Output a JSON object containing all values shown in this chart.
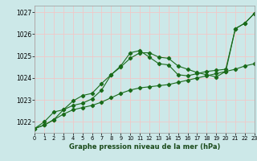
{
  "xlabel": "Graphe pression niveau de la mer (hPa)",
  "xlim": [
    0,
    23
  ],
  "ylim": [
    1021.5,
    1027.3
  ],
  "yticks": [
    1022,
    1023,
    1024,
    1025,
    1026,
    1027
  ],
  "xticks": [
    0,
    1,
    2,
    3,
    4,
    5,
    6,
    7,
    8,
    9,
    10,
    11,
    12,
    13,
    14,
    15,
    16,
    17,
    18,
    19,
    20,
    21,
    22,
    23
  ],
  "bg_color": "#cce8e8",
  "grid_color": "#f0c8c8",
  "line_color": "#1a6b1a",
  "series1": {
    "x": [
      0,
      1,
      2,
      3,
      4,
      5,
      6,
      7,
      8,
      9,
      10,
      11,
      12,
      13,
      14,
      15,
      16,
      17,
      18,
      19,
      20,
      21,
      22,
      23
    ],
    "y": [
      1021.7,
      1021.85,
      1022.1,
      1022.55,
      1022.75,
      1022.85,
      1023.05,
      1023.45,
      1024.15,
      1024.55,
      1025.15,
      1025.25,
      1024.95,
      1024.65,
      1024.6,
      1024.15,
      1024.1,
      1024.2,
      1024.3,
      1024.35,
      1024.4,
      1026.25,
      1026.5,
      1026.95
    ]
  },
  "series2": {
    "x": [
      0,
      1,
      2,
      3,
      4,
      5,
      6,
      7,
      8,
      9,
      10,
      11,
      12,
      13,
      14,
      15,
      16,
      17,
      18,
      19,
      20,
      21,
      22,
      23
    ],
    "y": [
      1021.7,
      1021.85,
      1022.1,
      1022.35,
      1022.55,
      1022.65,
      1022.75,
      1022.9,
      1023.1,
      1023.3,
      1023.45,
      1023.55,
      1023.6,
      1023.65,
      1023.7,
      1023.8,
      1023.9,
      1024.0,
      1024.1,
      1024.2,
      1024.3,
      1024.4,
      1024.55,
      1024.65
    ]
  },
  "series3": {
    "x": [
      0,
      1,
      2,
      3,
      4,
      5,
      6,
      7,
      8,
      9,
      10,
      11,
      12,
      13,
      14,
      15,
      16,
      17,
      18,
      19,
      20,
      21,
      22,
      23
    ],
    "y": [
      1021.7,
      1022.0,
      1022.45,
      1022.55,
      1022.95,
      1023.2,
      1023.3,
      1023.75,
      1024.15,
      1024.5,
      1024.9,
      1025.15,
      1025.15,
      1024.95,
      1024.9,
      1024.55,
      1024.4,
      1024.25,
      1024.15,
      1024.05,
      1024.3,
      1026.25,
      1026.5,
      1026.95
    ]
  }
}
